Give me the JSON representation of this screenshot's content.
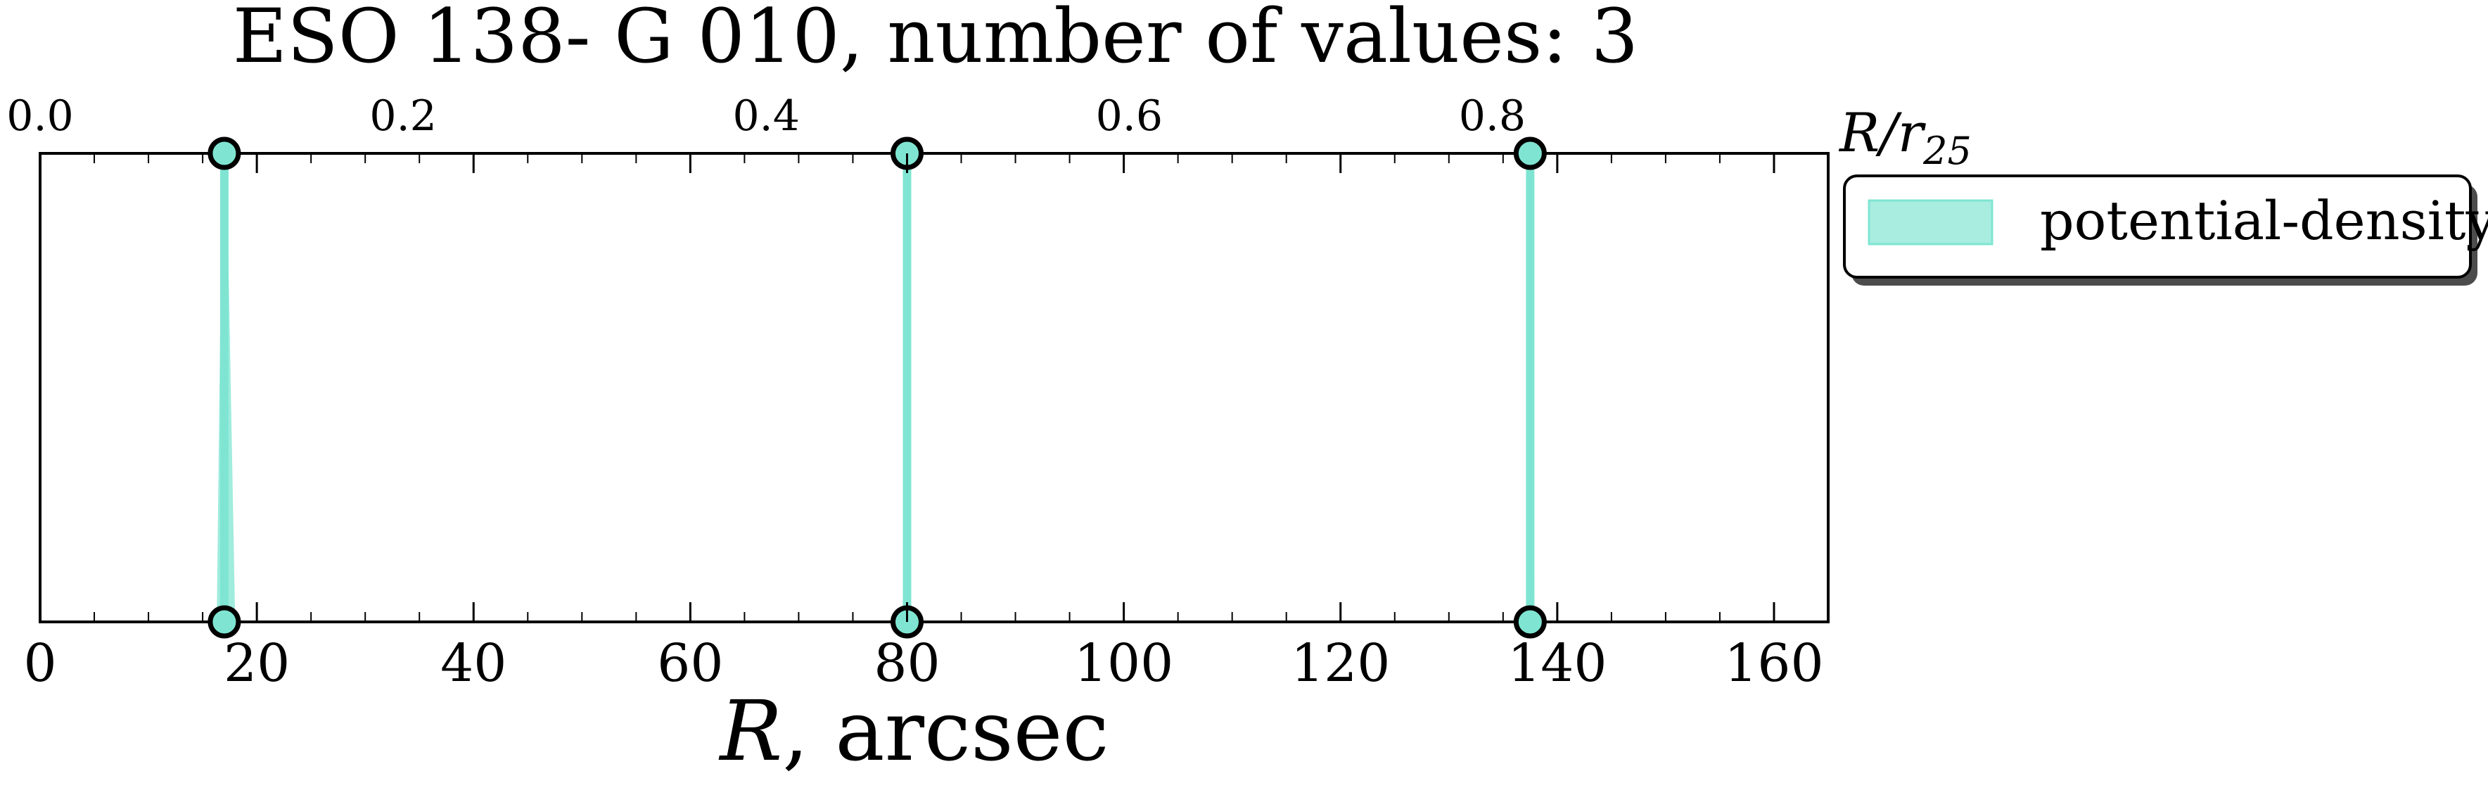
{
  "chart_data": {
    "type": "line",
    "title": "ESO 138- G 010, number of values: 3",
    "xlabel_main": "R",
    "xlabel_rest": ", arcsec",
    "top_label_main": "R/r",
    "top_label_sub": "25",
    "xlim": [
      0,
      165
    ],
    "x_ticks": [
      0,
      20,
      40,
      60,
      80,
      100,
      120,
      140,
      160
    ],
    "x_tick_labels": [
      "0",
      "20",
      "40",
      "60",
      "80",
      "100",
      "120",
      "140",
      "160"
    ],
    "top_ticks_data_x": [
      0,
      33.5,
      67.0,
      100.5,
      134.0
    ],
    "top_tick_labels": [
      "0.0",
      "0.2",
      "0.4",
      "0.6",
      "0.8"
    ],
    "series": [
      {
        "name": "potential-density",
        "color": "#7fe5d2",
        "points": [
          {
            "x": 17.0,
            "band": [
              16.3,
              18.0
            ]
          },
          {
            "x": 80.0,
            "band": [
              79.7,
              80.4
            ]
          },
          {
            "x": 137.5,
            "band": [
              137.2,
              137.9
            ]
          }
        ]
      }
    ],
    "legend": {
      "position": "outside-right",
      "label": "potential-density"
    },
    "grid": false
  }
}
